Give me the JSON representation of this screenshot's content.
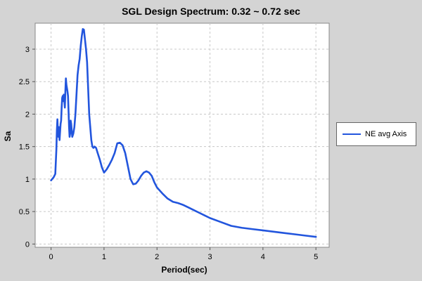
{
  "chart_data": {
    "type": "line",
    "title": "SGL Design Spectrum: 0.32 ~ 0.72 sec",
    "xlabel": "Period(sec)",
    "ylabel": "Sa",
    "xlim": [
      -0.3,
      5.25
    ],
    "ylim": [
      -0.05,
      3.4
    ],
    "xticks": [
      0,
      1,
      2,
      3,
      4,
      5
    ],
    "yticks": [
      0,
      0.5,
      1,
      1.5,
      2,
      2.5,
      3
    ],
    "grid": true,
    "legend_position": "right",
    "series": [
      {
        "name": "NE avg Axis",
        "color": "#2255dd",
        "x": [
          0,
          0.02,
          0.05,
          0.08,
          0.1,
          0.11,
          0.12,
          0.13,
          0.14,
          0.15,
          0.16,
          0.18,
          0.19,
          0.2,
          0.21,
          0.22,
          0.23,
          0.24,
          0.25,
          0.26,
          0.27,
          0.28,
          0.29,
          0.3,
          0.31,
          0.32,
          0.33,
          0.34,
          0.35,
          0.36,
          0.37,
          0.38,
          0.39,
          0.4,
          0.42,
          0.44,
          0.46,
          0.48,
          0.5,
          0.52,
          0.54,
          0.56,
          0.58,
          0.6,
          0.62,
          0.64,
          0.66,
          0.68,
          0.7,
          0.72,
          0.74,
          0.76,
          0.78,
          0.8,
          0.82,
          0.85,
          0.88,
          0.92,
          0.96,
          1.0,
          1.05,
          1.1,
          1.15,
          1.2,
          1.25,
          1.3,
          1.35,
          1.4,
          1.45,
          1.5,
          1.55,
          1.6,
          1.65,
          1.7,
          1.75,
          1.8,
          1.85,
          1.9,
          1.95,
          2.0,
          2.1,
          2.2,
          2.3,
          2.4,
          2.5,
          2.6,
          2.7,
          2.8,
          2.9,
          3.0,
          3.2,
          3.4,
          3.6,
          3.8,
          4.0,
          4.2,
          4.4,
          4.6,
          4.8,
          5.0
        ],
        "values": [
          0.98,
          1.0,
          1.03,
          1.08,
          1.45,
          1.75,
          1.92,
          1.7,
          1.65,
          1.8,
          1.6,
          1.85,
          1.9,
          2.1,
          2.25,
          2.28,
          2.2,
          2.3,
          2.22,
          2.1,
          2.35,
          2.55,
          2.45,
          2.4,
          2.35,
          2.28,
          2.05,
          1.8,
          1.65,
          1.7,
          1.9,
          1.85,
          1.75,
          1.65,
          1.7,
          1.8,
          2.0,
          2.3,
          2.6,
          2.75,
          2.85,
          3.05,
          3.2,
          3.31,
          3.3,
          3.15,
          3.0,
          2.8,
          2.4,
          2.0,
          1.8,
          1.6,
          1.5,
          1.48,
          1.5,
          1.48,
          1.4,
          1.3,
          1.18,
          1.1,
          1.15,
          1.22,
          1.3,
          1.4,
          1.55,
          1.56,
          1.52,
          1.4,
          1.2,
          1.0,
          0.92,
          0.93,
          0.98,
          1.05,
          1.1,
          1.12,
          1.1,
          1.05,
          0.95,
          0.87,
          0.78,
          0.7,
          0.65,
          0.63,
          0.6,
          0.56,
          0.52,
          0.48,
          0.44,
          0.4,
          0.34,
          0.28,
          0.25,
          0.23,
          0.21,
          0.19,
          0.17,
          0.15,
          0.13,
          0.11
        ]
      }
    ]
  }
}
